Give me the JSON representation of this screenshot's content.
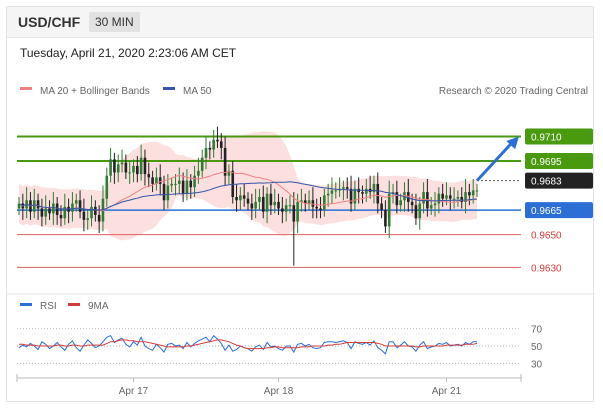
{
  "header": {
    "pair": "USD/CHF",
    "timeframe": "30 MIN",
    "datetime": "Tuesday, April 21, 2020 2:23:06 AM CET"
  },
  "legend": {
    "ma20_bb": "MA 20 + Bollinger Bands",
    "ma50": "MA 50",
    "source": "Research © 2020 Trading Central",
    "rsi": "RSI",
    "ma9": "9MA"
  },
  "colors": {
    "green": "#4a9a10",
    "blue": "#2b6fd6",
    "red": "#e06060",
    "black": "#222222",
    "ma20": "#f08080",
    "ma50": "#3355aa",
    "band": "#fbd9d9",
    "candle_up": "#2e7d32",
    "candle_down": "#222222"
  },
  "chart_data": [
    {
      "type": "candlestick",
      "ylim": [
        0.9618,
        0.9728
      ],
      "price_levels": [
        {
          "value": 0.971,
          "label": "0.9710",
          "style": "green"
        },
        {
          "value": 0.9695,
          "label": "0.9695",
          "style": "green"
        },
        {
          "value": 0.9683,
          "label": "0.9683",
          "style": "black"
        },
        {
          "value": 0.9665,
          "label": "0.9665",
          "style": "blue"
        },
        {
          "value": 0.965,
          "label": "0.9650",
          "style": "red"
        },
        {
          "value": 0.963,
          "label": "0.9630",
          "style": "red"
        }
      ],
      "x_ticks": [
        "Apr 17",
        "Apr 18",
        "Apr 21"
      ],
      "x_tick_index": [
        30,
        68,
        112
      ],
      "close": [
        0.9669,
        0.9666,
        0.9671,
        0.9664,
        0.9671,
        0.9666,
        0.9661,
        0.9666,
        0.9663,
        0.9669,
        0.9662,
        0.966,
        0.9667,
        0.9664,
        0.9669,
        0.9671,
        0.9664,
        0.9659,
        0.966,
        0.9667,
        0.9662,
        0.9658,
        0.9672,
        0.9686,
        0.9696,
        0.9688,
        0.9693,
        0.9694,
        0.9688,
        0.9688,
        0.9692,
        0.9687,
        0.9697,
        0.9687,
        0.9685,
        0.9681,
        0.9685,
        0.9681,
        0.9671,
        0.968,
        0.9681,
        0.9681,
        0.9683,
        0.9675,
        0.9683,
        0.9679,
        0.9686,
        0.9689,
        0.9697,
        0.9703,
        0.9702,
        0.9708,
        0.9707,
        0.9703,
        0.9686,
        0.9689,
        0.9673,
        0.9671,
        0.9674,
        0.9672,
        0.9669,
        0.9666,
        0.967,
        0.9673,
        0.9664,
        0.9675,
        0.9668,
        0.967,
        0.9666,
        0.9664,
        0.9668,
        0.9668,
        0.9658,
        0.967,
        0.9671,
        0.9669,
        0.9671,
        0.9667,
        0.9666,
        0.9665,
        0.9674,
        0.9675,
        0.9677,
        0.9677,
        0.9678,
        0.9679,
        0.9678,
        0.9669,
        0.9678,
        0.9676,
        0.9675,
        0.9678,
        0.9676,
        0.9681,
        0.9669,
        0.9665,
        0.9655,
        0.9675,
        0.9676,
        0.9668,
        0.9671,
        0.9676,
        0.967,
        0.9668,
        0.966,
        0.9669,
        0.9676,
        0.9666,
        0.9668,
        0.9669,
        0.9675,
        0.9672,
        0.9674,
        0.9672,
        0.9672,
        0.9673,
        0.967,
        0.9676,
        0.9674,
        0.9677,
        0.9677
      ]
    },
    {
      "type": "line",
      "title": "RSI",
      "ylim": [
        20,
        80
      ],
      "y_ticks": [
        70,
        50,
        30
      ],
      "series": [
        {
          "name": "RSI",
          "values": [
            48,
            51,
            49,
            53,
            50,
            46,
            55,
            52,
            47,
            50,
            54,
            49,
            45,
            52,
            56,
            48,
            44,
            51,
            57,
            53,
            48,
            50,
            55,
            60,
            62,
            54,
            57,
            59,
            52,
            49,
            55,
            51,
            60,
            50,
            47,
            45,
            52,
            48,
            43,
            52,
            53,
            50,
            51,
            47,
            54,
            49,
            53,
            56,
            58,
            60,
            55,
            62,
            58,
            53,
            45,
            51,
            44,
            46,
            50,
            48,
            47,
            44,
            49,
            51,
            46,
            54,
            49,
            50,
            47,
            45,
            50,
            50,
            43,
            52,
            53,
            50,
            52,
            48,
            47,
            48,
            54,
            55,
            55,
            54,
            55,
            56,
            54,
            47,
            55,
            53,
            52,
            54,
            51,
            56,
            48,
            45,
            41,
            55,
            55,
            48,
            51,
            55,
            50,
            49,
            44,
            51,
            55,
            47,
            49,
            50,
            53,
            52,
            54,
            50,
            51,
            52,
            50,
            54,
            52,
            55,
            55
          ]
        },
        {
          "name": "9MA",
          "values": [
            52,
            52,
            51,
            51,
            51,
            50,
            50,
            50,
            50,
            50,
            51,
            51,
            50,
            50,
            51,
            51,
            50,
            50,
            51,
            51,
            51,
            51,
            51,
            53,
            55,
            55,
            56,
            57,
            57,
            56,
            56,
            55,
            55,
            55,
            54,
            53,
            52,
            51,
            50,
            49,
            49,
            49,
            49,
            49,
            50,
            50,
            51,
            52,
            53,
            54,
            55,
            56,
            57,
            57,
            56,
            55,
            53,
            51,
            50,
            48,
            47,
            47,
            47,
            47,
            47,
            48,
            48,
            49,
            49,
            48,
            48,
            48,
            48,
            48,
            49,
            49,
            49,
            50,
            50,
            50,
            50,
            51,
            51,
            52,
            52,
            53,
            54,
            54,
            54,
            54,
            54,
            54,
            54,
            54,
            53,
            52,
            50,
            50,
            50,
            50,
            50,
            50,
            50,
            50,
            49,
            49,
            50,
            50,
            50,
            50,
            50,
            50,
            51,
            51,
            51,
            51,
            51,
            52,
            52,
            52,
            53
          ]
        }
      ]
    }
  ]
}
